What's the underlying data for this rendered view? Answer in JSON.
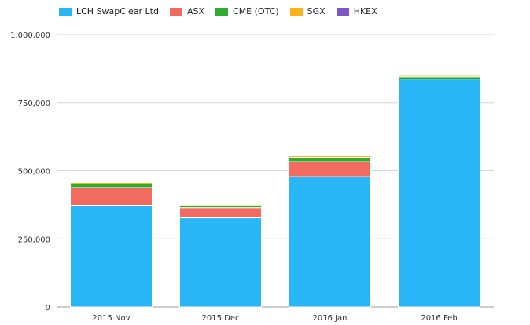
{
  "chart_data": {
    "type": "bar",
    "stacked": true,
    "categories": [
      "2015 Nov",
      "2015 Dec",
      "2016 Jan",
      "2016 Feb"
    ],
    "series": [
      {
        "name": "LCH SwapClear Ltd",
        "color": "#29b6f6",
        "values": [
          373000,
          327000,
          478000,
          837000
        ]
      },
      {
        "name": "ASX",
        "color": "#f26b60",
        "values": [
          65000,
          37000,
          55000,
          0
        ]
      },
      {
        "name": "CME (OTC)",
        "color": "#2eac2e",
        "values": [
          13000,
          7000,
          16000,
          8000
        ]
      },
      {
        "name": "SGX",
        "color": "#ffb31a",
        "values": [
          6000,
          4000,
          6000,
          5000
        ]
      },
      {
        "name": "HKEX",
        "color": "#7e57c2",
        "values": [
          2000,
          1500,
          2000,
          2000
        ]
      }
    ],
    "yticks": [
      "0",
      "250,000",
      "500,000",
      "750,000",
      "1,000,000"
    ],
    "ylim": [
      0,
      1000000
    ],
    "grid": true,
    "legend_position": "top-left"
  }
}
